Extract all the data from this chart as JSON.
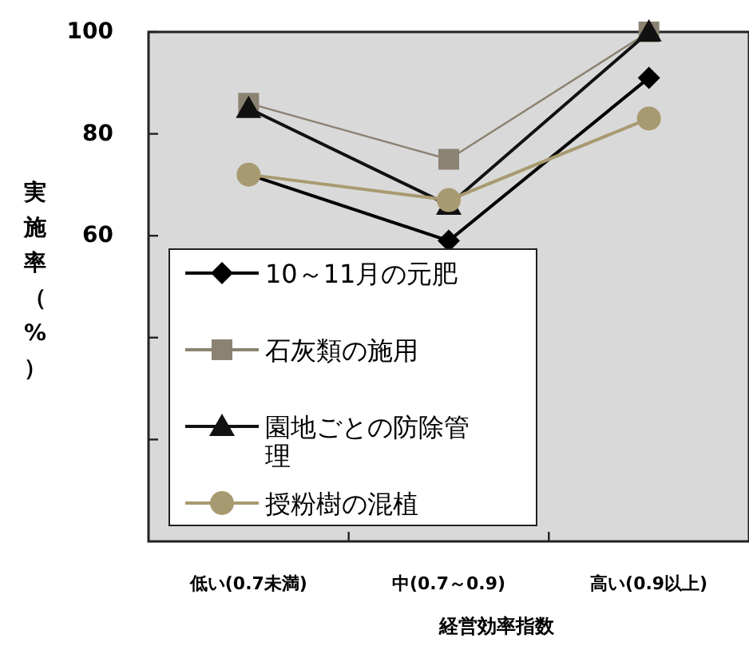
{
  "chart_data": {
    "type": "line",
    "xlabel": "経営効率指数",
    "ylabel": "実施率（%）",
    "categories": [
      "低い(0.7未満)",
      "中(0.7～0.9)",
      "高い(0.9以上)"
    ],
    "series": [
      {
        "name": "10～11月の元肥",
        "color": "#000000",
        "marker": "diamond",
        "values": [
          72,
          59,
          91
        ]
      },
      {
        "name": "石灰類の施用",
        "color": "#8c8272",
        "marker": "square",
        "values": [
          86,
          75,
          100
        ]
      },
      {
        "name": "園地ごとの防除管理",
        "color": "#111111",
        "marker": "triangle",
        "values": [
          85,
          66,
          100
        ]
      },
      {
        "name": "授粉樹の混植",
        "color": "#a89a70",
        "marker": "circle",
        "values": [
          72,
          67,
          83
        ]
      }
    ],
    "ylim": [
      0,
      100
    ],
    "yticks": [
      {
        "value": 20,
        "label": null
      },
      {
        "value": 40,
        "label": null
      },
      60,
      80,
      100
    ],
    "grid": false,
    "legend": "bottom left"
  }
}
